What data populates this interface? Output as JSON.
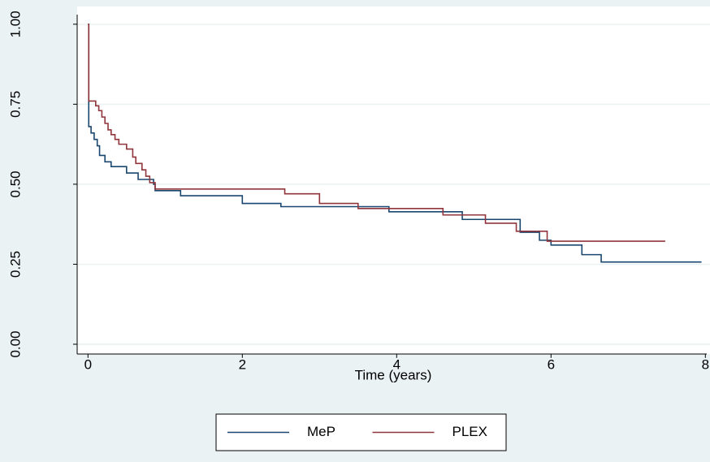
{
  "chart_data": {
    "type": "step",
    "xlabel": "Time (years)",
    "xlim": [
      -0.14,
      8.06
    ],
    "xticks": [
      0,
      2,
      4,
      6,
      8
    ],
    "ylim": [
      -0.03,
      1.03
    ],
    "yticks": [
      {
        "value": 0,
        "label": "0.00"
      },
      {
        "value": 0.25,
        "label": "0.25"
      },
      {
        "value": 0.5,
        "label": "0.50"
      },
      {
        "value": 0.75,
        "label": "0.75"
      },
      {
        "value": 1,
        "label": "1.00"
      }
    ],
    "grid": true,
    "legend": "bottom",
    "series": [
      {
        "name": "MeP",
        "color": "#1a476f",
        "x": [
          0,
          0.01,
          0.04,
          0.08,
          0.12,
          0.15,
          0.22,
          0.3,
          0.5,
          0.65,
          0.85,
          0.87,
          1.2,
          2.0,
          2.5,
          3.9,
          4.85,
          5.6,
          5.85,
          6.0,
          6.4,
          6.65,
          7.95
        ],
        "values": [
          1.0,
          0.68,
          0.66,
          0.64,
          0.62,
          0.59,
          0.57,
          0.555,
          0.535,
          0.515,
          0.5,
          0.48,
          0.464,
          0.44,
          0.43,
          0.414,
          0.39,
          0.35,
          0.325,
          0.31,
          0.28,
          0.257,
          0.257
        ]
      },
      {
        "name": "PLEX",
        "color": "#90353b",
        "x": [
          0,
          0.01,
          0.1,
          0.14,
          0.18,
          0.22,
          0.26,
          0.3,
          0.35,
          0.4,
          0.5,
          0.58,
          0.62,
          0.7,
          0.75,
          0.8,
          0.87,
          2.55,
          3.0,
          3.5,
          4.6,
          5.15,
          5.55,
          5.95,
          7.48
        ],
        "values": [
          1.0,
          0.76,
          0.745,
          0.73,
          0.71,
          0.69,
          0.67,
          0.655,
          0.64,
          0.625,
          0.61,
          0.585,
          0.565,
          0.545,
          0.525,
          0.505,
          0.485,
          0.47,
          0.44,
          0.424,
          0.404,
          0.378,
          0.353,
          0.322,
          0.322
        ]
      }
    ]
  }
}
